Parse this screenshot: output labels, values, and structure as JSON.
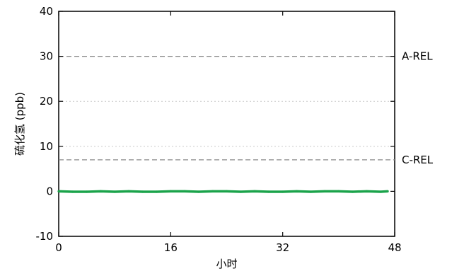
{
  "chart_data": {
    "type": "line",
    "title": "",
    "xlabel": "小时",
    "ylabel": "硫化氢 (ppb)",
    "xlim": [
      0,
      48
    ],
    "ylim": [
      -10,
      40
    ],
    "xticks": [
      0,
      16,
      32,
      48
    ],
    "yticks": [
      -10,
      0,
      10,
      20,
      30,
      40
    ],
    "grid": "dotted horizontal at 10 and 20",
    "reference_lines": [
      {
        "label": "A-REL",
        "y": 30
      },
      {
        "label": "C-REL",
        "y": 7
      }
    ],
    "series": [
      {
        "color": "#1aa34a",
        "x": [
          0,
          2,
          4,
          6,
          8,
          10,
          12,
          14,
          16,
          18,
          20,
          22,
          24,
          26,
          28,
          30,
          32,
          34,
          36,
          38,
          40,
          42,
          44,
          46,
          47
        ],
        "values": [
          0.0,
          -0.1,
          -0.1,
          0.0,
          -0.1,
          0.0,
          -0.1,
          -0.1,
          0.0,
          0.0,
          -0.1,
          0.0,
          0.0,
          -0.1,
          0.0,
          -0.1,
          -0.1,
          0.0,
          -0.1,
          0.0,
          0.0,
          -0.1,
          0.0,
          -0.1,
          0.0
        ]
      }
    ],
    "colors": {
      "series": "#1aa34a",
      "reference_line": "#888888",
      "grid": "#c8c8c8",
      "axis": "#000000"
    }
  }
}
